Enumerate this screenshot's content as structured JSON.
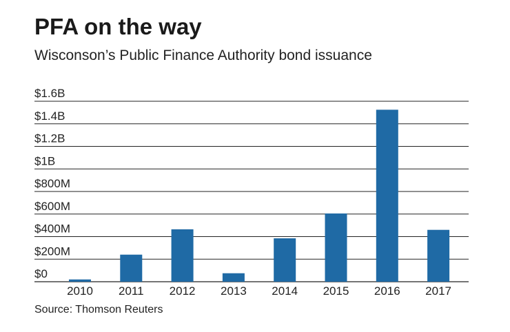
{
  "header": {
    "title": "PFA on the way",
    "subtitle": "Wisconson’s Public Finance Authority bond issuance"
  },
  "footer": {
    "source": "Source: Thomson Reuters"
  },
  "colors": {
    "bar": "#1f6aa5",
    "grid": "#222222",
    "text": "#222222"
  },
  "chart_data": {
    "type": "bar",
    "title": "PFA on the way",
    "subtitle": "Wisconson’s Public Finance Authority bond issuance",
    "xlabel": "",
    "ylabel": "",
    "categories": [
      "2010",
      "2011",
      "2012",
      "2013",
      "2014",
      "2015",
      "2016",
      "2017"
    ],
    "series": [
      {
        "name": "Bond issuance",
        "values": [
          20000000,
          240000000,
          465000000,
          75000000,
          385000000,
          605000000,
          1525000000,
          460000000
        ]
      }
    ],
    "ylim": [
      0,
      1600000000
    ],
    "yticks": [
      {
        "value": 0,
        "label": "$0"
      },
      {
        "value": 200000000,
        "label": "$200M"
      },
      {
        "value": 400000000,
        "label": "$400M"
      },
      {
        "value": 600000000,
        "label": "$600M"
      },
      {
        "value": 800000000,
        "label": "$800M"
      },
      {
        "value": 1000000000,
        "label": "$1B"
      },
      {
        "value": 1200000000,
        "label": "$1.2B"
      },
      {
        "value": 1400000000,
        "label": "$1.4B"
      },
      {
        "value": 1600000000,
        "label": "$1.6B"
      }
    ],
    "grid": true,
    "legend": "none",
    "source": "Source: Thomson Reuters"
  }
}
